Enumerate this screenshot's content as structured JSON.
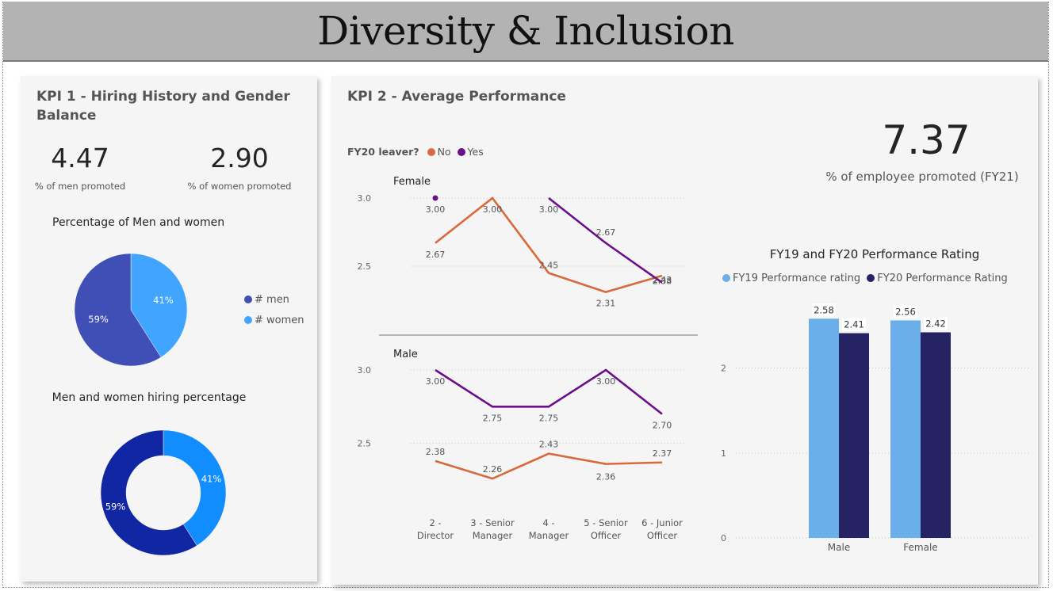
{
  "page": {
    "title": "Diversity & Inclusion"
  },
  "kpi1": {
    "title": "KPI 1 - Hiring History and Gender Balance",
    "men_promoted": {
      "value": "4.47",
      "label": "% of men promoted"
    },
    "women_promoted": {
      "value": "2.90",
      "label": "% of women promoted"
    },
    "pie_title": "Percentage of Men and women",
    "pie_legend": [
      "# men",
      "# women"
    ],
    "donut_title": "Men and women hiring percentage"
  },
  "kpi2": {
    "title": "KPI 2 - Average Performance",
    "promoted": {
      "value": "7.37",
      "label": "% of employee promoted (FY21)"
    },
    "leaver_legend": {
      "title": "FY20 leaver?",
      "no": "No",
      "yes": "Yes"
    },
    "bar_title": "FY19 and FY20 Performance Rating",
    "bar_legend": [
      "FY19 Performance rating",
      "FY20 Performance Rating"
    ]
  },
  "colors": {
    "men": "#3f4fb5",
    "women": "#41a5ff",
    "hire_men": "#1126a2",
    "hire_women": "#118dff",
    "leaver_no": "#d9683a",
    "leaver_yes": "#6b0f88",
    "fy19": "#6aaeea",
    "fy20": "#252363"
  },
  "chart_data": [
    {
      "type": "pie",
      "title": "Percentage of Men and women",
      "labels": [
        "# men",
        "# women"
      ],
      "values": [
        59,
        41
      ],
      "value_labels": [
        "59%",
        "41%"
      ],
      "legend": "right"
    },
    {
      "type": "pie",
      "title": "Men and women hiring percentage",
      "labels": [
        "men",
        "women"
      ],
      "values": [
        59,
        41
      ],
      "value_labels": [
        "59%",
        "41%"
      ],
      "donut": true
    },
    {
      "type": "line",
      "legend_title": "FY20 leaver?",
      "legend": "top-left",
      "categories": [
        "2 - Director",
        "3 - Senior Manager",
        "4 - Manager",
        "5 - Senior Officer",
        "6 - Junior Officer"
      ],
      "panels": [
        {
          "name": "Female",
          "yticks": [
            "2.5",
            "3.0"
          ],
          "ylim": [
            2.25,
            3.0
          ],
          "series": [
            {
              "name": "No",
              "values": [
                2.67,
                3.0,
                2.45,
                2.31,
                2.43
              ],
              "labels": [
                "2.67",
                "3.00",
                "2.45",
                "2.31",
                "2.43"
              ]
            },
            {
              "name": "Yes",
              "values": [
                3.0,
                null,
                3.0,
                2.67,
                2.38
              ],
              "labels": [
                "3.00",
                "",
                "3.00",
                "2.67",
                "2.38"
              ]
            }
          ]
        },
        {
          "name": "Male",
          "yticks": [
            "2.5",
            "3.0"
          ],
          "ylim": [
            2.25,
            3.0
          ],
          "series": [
            {
              "name": "No",
              "values": [
                2.38,
                2.26,
                2.43,
                2.36,
                2.37
              ],
              "labels": [
                "2.38",
                "2.26",
                "2.43",
                "2.36",
                "2.37"
              ]
            },
            {
              "name": "Yes",
              "values": [
                3.0,
                2.75,
                2.75,
                3.0,
                2.7
              ],
              "labels": [
                "3.00",
                "2.75",
                "2.75",
                "3.00",
                "2.70"
              ]
            }
          ]
        }
      ]
    },
    {
      "type": "bar",
      "title": "FY19 and FY20 Performance Rating",
      "categories": [
        "Male",
        "Female"
      ],
      "series": [
        {
          "name": "FY19 Performance rating",
          "values": [
            2.58,
            2.56
          ],
          "labels": [
            "2.58",
            "2.56"
          ]
        },
        {
          "name": "FY20 Performance Rating",
          "values": [
            2.41,
            2.42
          ],
          "labels": [
            "2.41",
            "2.42"
          ]
        }
      ],
      "yticks": [
        "0",
        "1",
        "2"
      ],
      "ylim": [
        0,
        2.9
      ],
      "legend": "top-left"
    }
  ]
}
